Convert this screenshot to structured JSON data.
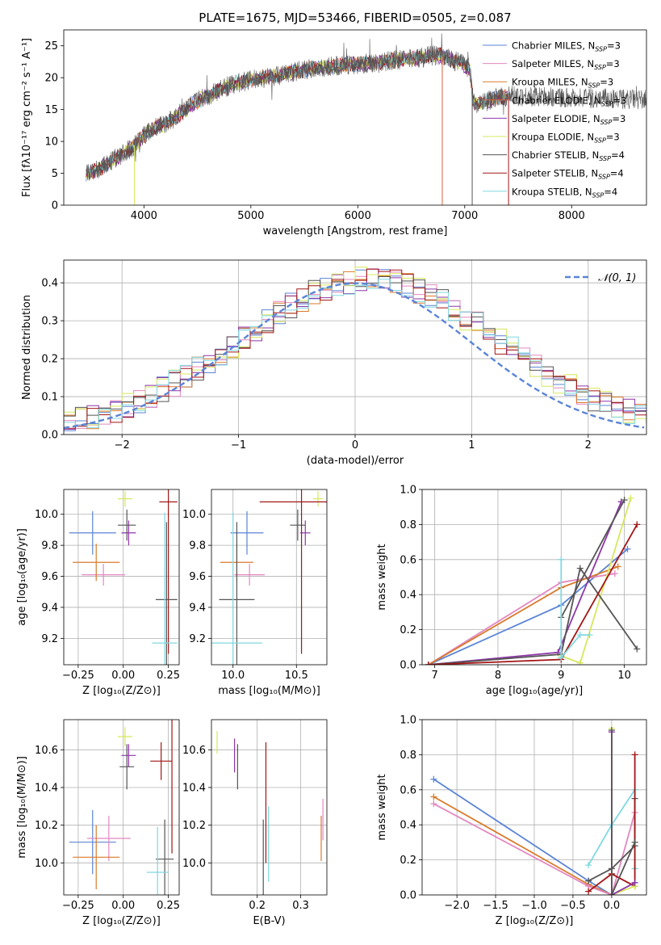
{
  "colors": {
    "chabrier_miles": "#5b84d6",
    "salpeter_miles": "#e387c0",
    "kroupa_miles": "#d97a2b",
    "chabrier_elodie": "#d9623c",
    "salpeter_elodie": "#8e37a8",
    "kroupa_elodie": "#d6e85c",
    "chabrier_stelib": "#555555",
    "salpeter_stelib": "#a31515",
    "kroupa_stelib": "#7fd8e0",
    "gauss": "#5b84d6"
  },
  "chart_data": [
    {
      "id": "spectrum",
      "type": "line",
      "title": "PLATE=1675, MJD=53466, FIBERID=0505, z=0.087",
      "xlabel": "wavelength [Angstrom, rest frame]",
      "ylabel": "Flux [fλ10⁻¹⁷ erg cm⁻² s⁻¹ A⁻¹]",
      "xlim": [
        3250,
        8700
      ],
      "ylim": [
        0,
        27.5
      ],
      "xticks": [
        "4000",
        "5000",
        "6000",
        "7000",
        "8000"
      ],
      "yticks": [
        "0",
        "5",
        "10",
        "15",
        "20",
        "25"
      ],
      "grid": false,
      "legend_position": "top-right",
      "legend": [
        {
          "key": "chabrier_miles",
          "label": "Chabrier MILES, N",
          "sub": "SSP",
          "suffix": "=3"
        },
        {
          "key": "salpeter_miles",
          "label": "Salpeter MILES, N",
          "sub": "SSP",
          "suffix": "=3"
        },
        {
          "key": "kroupa_miles",
          "label": "Kroupa MILES, N",
          "sub": "SSP",
          "suffix": "=3"
        },
        {
          "key": "chabrier_elodie",
          "label": "Chabrier ELODIE, N",
          "sub": "SSP",
          "suffix": "=3"
        },
        {
          "key": "salpeter_elodie",
          "label": "Salpeter ELODIE, N",
          "sub": "SSP",
          "suffix": "=3"
        },
        {
          "key": "kroupa_elodie",
          "label": "Kroupa ELODIE, N",
          "sub": "SSP",
          "suffix": "=3"
        },
        {
          "key": "chabrier_stelib",
          "label": "Chabrier STELIB, N",
          "sub": "SSP",
          "suffix": "=4"
        },
        {
          "key": "salpeter_stelib",
          "label": "Salpeter STELIB, N",
          "sub": "SSP",
          "suffix": "=4"
        },
        {
          "key": "kroupa_stelib",
          "label": "Kroupa STELIB, N",
          "sub": "SSP",
          "suffix": "=4"
        }
      ],
      "continuum": {
        "x": [
          3450,
          3600,
          3750,
          3900,
          4000,
          4100,
          4200,
          4300,
          4400,
          4500,
          4600,
          4700,
          4800,
          4900,
          5000,
          5100,
          5200,
          5300,
          5400,
          5500,
          5600,
          5700,
          5800,
          5900,
          6000,
          6100,
          6200,
          6300,
          6400,
          6500,
          6600,
          6700,
          6800,
          6900,
          7000,
          7050,
          7080,
          7150,
          7300,
          7400
        ],
        "y": [
          4.8,
          5.8,
          7.5,
          9.2,
          11.0,
          12.2,
          12.8,
          13.8,
          15.2,
          16.3,
          17.2,
          18.0,
          18.8,
          19.3,
          19.6,
          19.9,
          20.2,
          20.5,
          20.9,
          21.2,
          21.5,
          21.6,
          21.8,
          22.0,
          22.1,
          22.3,
          22.4,
          22.6,
          22.8,
          23.0,
          23.2,
          23.5,
          23.3,
          22.7,
          22.0,
          21.3,
          16.0,
          16.0,
          16.8,
          17.0
        ]
      },
      "cutoffs": [
        {
          "key": "kroupa_elodie",
          "x": 3910
        },
        {
          "key": "chabrier_elodie",
          "x": 6790
        },
        {
          "key": "chabrier_stelib",
          "x": 7070
        },
        {
          "key": "salpeter_stelib",
          "x": 7410
        }
      ]
    },
    {
      "id": "residuals",
      "type": "line",
      "xlabel": "(data-model)/error",
      "ylabel": "Normed distribution",
      "xlim": [
        -2.5,
        2.5
      ],
      "ylim": [
        0,
        0.46
      ],
      "xticks": [
        -2,
        -1,
        0,
        1,
        2
      ],
      "yticks": [
        0.0,
        0.1,
        0.2,
        0.3,
        0.4
      ],
      "grid": true,
      "legend_position": "top-right",
      "legend": [
        {
          "key": "gauss",
          "label": "𝒩(0, 1)"
        }
      ],
      "bin_width": 0.1
    },
    {
      "id": "age_vs_Z",
      "type": "scatter",
      "xlabel": "Z [log₁₀(Z/Z⊙)]",
      "ylabel": "age  [log₁₀(age/yr)]",
      "xlim": [
        -0.33,
        0.31
      ],
      "ylim": [
        9.03,
        10.16
      ],
      "xticks": [
        "−0.25",
        "0.00",
        "0.25"
      ],
      "xtick_values": [
        -0.25,
        0.0,
        0.25
      ],
      "yticks": [
        "9.2",
        "9.4",
        "9.6",
        "9.8",
        "10.0"
      ],
      "ytick_values": [
        9.2,
        9.4,
        9.6,
        9.8,
        10.0
      ],
      "grid": true,
      "points": [
        {
          "key": "chabrier_miles",
          "x": -0.17,
          "xerr": 0.13,
          "y": 9.88,
          "yerr": 0.14
        },
        {
          "key": "salpeter_miles",
          "x": -0.11,
          "xerr": 0.12,
          "y": 9.61,
          "yerr": 0.07
        },
        {
          "key": "kroupa_miles",
          "x": -0.15,
          "xerr": 0.13,
          "y": 9.69,
          "yerr": 0.12
        },
        {
          "key": "salpeter_elodie",
          "x": 0.03,
          "xerr": 0.04,
          "y": 9.88,
          "yerr": 0.08
        },
        {
          "key": "kroupa_elodie",
          "x": 0.01,
          "xerr": 0.04,
          "y": 10.1,
          "yerr": 0.05
        },
        {
          "key": "chabrier_stelib",
          "x": 0.02,
          "xerr": 0.05,
          "y": 9.93,
          "yerr": 0.1
        },
        {
          "key": "salpeter_stelib",
          "x": 0.25,
          "xerr": 0.05,
          "y": 10.08,
          "yerr": 0.98
        },
        {
          "key": "chabrier_stelib",
          "x": 0.24,
          "xerr": 0.06,
          "y": 9.45,
          "yerr": 0.5
        },
        {
          "key": "kroupa_stelib",
          "x": 0.23,
          "xerr": 0.07,
          "y": 9.17,
          "yerr": 0.84
        }
      ]
    },
    {
      "id": "age_vs_mass",
      "type": "scatter",
      "xlabel": "mass [log₁₀(M/M⊙)]",
      "xlim": [
        9.83,
        10.74
      ],
      "ylim": [
        9.03,
        10.16
      ],
      "xticks": [
        "10.0",
        "10.5"
      ],
      "xtick_values": [
        10.0,
        10.5
      ],
      "yticks": [
        "9.2",
        "9.4",
        "9.6",
        "9.8",
        "10.0"
      ],
      "ytick_values": [
        9.2,
        9.4,
        9.6,
        9.8,
        10.0
      ],
      "grid": true,
      "points": [
        {
          "key": "chabrier_miles",
          "x": 10.11,
          "xerr": 0.13,
          "y": 9.88,
          "yerr": 0.14
        },
        {
          "key": "salpeter_miles",
          "x": 10.13,
          "xerr": 0.12,
          "y": 9.61,
          "yerr": 0.07
        },
        {
          "key": "kroupa_miles",
          "x": 10.03,
          "xerr": 0.13,
          "y": 9.69,
          "yerr": 0.12
        },
        {
          "key": "salpeter_elodie",
          "x": 10.57,
          "xerr": 0.04,
          "y": 9.88,
          "yerr": 0.08
        },
        {
          "key": "kroupa_elodie",
          "x": 10.67,
          "xerr": 0.04,
          "y": 10.1,
          "yerr": 0.05
        },
        {
          "key": "chabrier_stelib",
          "x": 10.51,
          "xerr": 0.06,
          "y": 9.93,
          "yerr": 0.1
        },
        {
          "key": "salpeter_stelib",
          "x": 10.54,
          "xerr": 0.33,
          "y": 10.08,
          "yerr": 0.98
        },
        {
          "key": "chabrier_stelib",
          "x": 10.03,
          "xerr": 0.14,
          "y": 9.45,
          "yerr": 0.5
        },
        {
          "key": "kroupa_stelib",
          "x": 10.0,
          "xerr": 0.23,
          "y": 9.17,
          "yerr": 0.84
        }
      ]
    },
    {
      "id": "weight_vs_age",
      "type": "line",
      "xlabel": "age  [log₁₀(age/yr)]",
      "ylabel": "mass weight",
      "xlim": [
        6.8,
        10.35
      ],
      "ylim": [
        0,
        1.0
      ],
      "xticks": [
        "7",
        "8",
        "9",
        "10"
      ],
      "xtick_values": [
        7,
        8,
        9,
        10
      ],
      "yticks": [
        "0.0",
        "0.2",
        "0.4",
        "0.6",
        "0.8",
        "1.0"
      ],
      "ytick_values": [
        0,
        0.2,
        0.4,
        0.6,
        0.8,
        1.0
      ],
      "grid": true,
      "series": [
        {
          "key": "chabrier_miles",
          "x": [
            6.9,
            9.0,
            10.05
          ],
          "y": [
            0.0,
            0.34,
            0.66
          ]
        },
        {
          "key": "salpeter_miles",
          "x": [
            6.9,
            9.0,
            9.85
          ],
          "y": [
            0.0,
            0.47,
            0.52
          ]
        },
        {
          "key": "kroupa_miles",
          "x": [
            6.9,
            9.0,
            9.9
          ],
          "y": [
            0.0,
            0.44,
            0.56
          ]
        },
        {
          "key": "salpeter_elodie",
          "x": [
            6.9,
            8.95,
            9.95
          ],
          "y": [
            0.0,
            0.07,
            0.93
          ]
        },
        {
          "key": "kroupa_elodie",
          "x": [
            9.0,
            9.3,
            10.1
          ],
          "y": [
            0.05,
            0.01,
            0.95
          ]
        },
        {
          "key": "chabrier_stelib",
          "x": [
            6.9,
            9.0,
            9.3,
            10.2
          ],
          "y": [
            0.0,
            0.06,
            0.55,
            0.09
          ]
        },
        {
          "key": "chabrier_stelib",
          "x": [
            9.0,
            10.0
          ],
          "y": [
            0.27,
            0.94
          ]
        },
        {
          "key": "salpeter_stelib",
          "x": [
            6.9,
            9.0,
            10.2
          ],
          "y": [
            0.0,
            0.03,
            0.8
          ]
        },
        {
          "key": "kroupa_stelib",
          "x": [
            9.0,
            9.0,
            9.3,
            9.45
          ],
          "y": [
            0.6,
            0.04,
            0.17,
            0.17
          ]
        }
      ]
    },
    {
      "id": "mass_vs_Z",
      "type": "scatter",
      "xlabel": "Z [log₁₀(Z/Z⊙)]",
      "ylabel": "mass [log₁₀(M/M⊙)]",
      "xlim": [
        -0.33,
        0.31
      ],
      "ylim": [
        9.83,
        10.76
      ],
      "xticks": [
        "−0.25",
        "0.00",
        "0.25"
      ],
      "xtick_values": [
        -0.25,
        0.0,
        0.25
      ],
      "yticks": [
        "10.0",
        "10.2",
        "10.4",
        "10.6"
      ],
      "ytick_values": [
        10.0,
        10.2,
        10.4,
        10.6
      ],
      "grid": true,
      "points": [
        {
          "key": "chabrier_miles",
          "x": -0.17,
          "xerr": 0.13,
          "y": 10.11,
          "yerr": 0.17
        },
        {
          "key": "salpeter_miles",
          "x": -0.08,
          "xerr": 0.12,
          "y": 10.13,
          "yerr": 0.12
        },
        {
          "key": "kroupa_miles",
          "x": -0.15,
          "xerr": 0.13,
          "y": 10.03,
          "yerr": 0.17
        },
        {
          "key": "salpeter_elodie",
          "x": 0.03,
          "xerr": 0.04,
          "y": 10.57,
          "yerr": 0.06
        },
        {
          "key": "kroupa_elodie",
          "x": 0.01,
          "xerr": 0.04,
          "y": 10.67,
          "yerr": 0.05
        },
        {
          "key": "chabrier_stelib",
          "x": 0.02,
          "xerr": 0.04,
          "y": 10.51,
          "yerr": 0.12
        },
        {
          "key": "salpeter_stelib",
          "x": 0.21,
          "xerr": 0.06,
          "y": 10.54,
          "yerr": 0.1
        },
        {
          "key": "salpeter_stelib",
          "x": 0.27,
          "xerr": 0.0,
          "y": 10.45,
          "yerr": 0.4
        },
        {
          "key": "chabrier_stelib",
          "x": 0.23,
          "xerr": 0.05,
          "y": 10.02,
          "yerr": 0.21
        },
        {
          "key": "kroupa_stelib",
          "x": 0.19,
          "xerr": 0.06,
          "y": 9.95,
          "yerr": 0.24
        }
      ]
    },
    {
      "id": "mass_vs_ebv",
      "type": "scatter",
      "xlabel": "E(B-V)",
      "xlim": [
        0.095,
        0.36
      ],
      "ylim": [
        9.83,
        10.76
      ],
      "xticks": [
        "0.2",
        "0.3"
      ],
      "xtick_values": [
        0.2,
        0.3
      ],
      "yticks": [
        "10.0",
        "10.2",
        "10.4",
        "10.6"
      ],
      "ytick_values": [
        10.0,
        10.2,
        10.4,
        10.6
      ],
      "grid": true,
      "points": [
        {
          "key": "kroupa_elodie",
          "x": 0.108,
          "xerr": 0,
          "y": 10.64,
          "yerr": 0.06
        },
        {
          "key": "salpeter_elodie",
          "x": 0.148,
          "xerr": 0,
          "y": 10.57,
          "yerr": 0.09
        },
        {
          "key": "chabrier_stelib",
          "x": 0.155,
          "xerr": 0,
          "y": 10.51,
          "yerr": 0.12
        },
        {
          "key": "salpeter_stelib",
          "x": 0.22,
          "xerr": 0,
          "y": 10.32,
          "yerr": 0.32
        },
        {
          "key": "chabrier_stelib",
          "x": 0.214,
          "xerr": 0,
          "y": 10.0,
          "yerr": 0.23
        },
        {
          "key": "kroupa_stelib",
          "x": 0.226,
          "xerr": 0,
          "y": 10.1,
          "yerr": 0.2
        },
        {
          "key": "salpeter_miles",
          "x": 0.351,
          "xerr": 0,
          "y": 10.23,
          "yerr": 0.11
        },
        {
          "key": "kroupa_miles",
          "x": 0.347,
          "xerr": 0,
          "y": 10.13,
          "yerr": 0.12
        }
      ]
    },
    {
      "id": "weight_vs_Z",
      "type": "line",
      "xlabel": "Z [log₁₀(Z/Z⊙)]",
      "ylabel": "mass weight",
      "xlim": [
        -2.45,
        0.45
      ],
      "ylim": [
        0,
        1.0
      ],
      "xticks": [
        "−2.0",
        "−1.5",
        "−1.0",
        "−0.5",
        "0.0"
      ],
      "xtick_values": [
        -2.0,
        -1.5,
        -1.0,
        -0.5,
        0.0
      ],
      "yticks": [
        "0.0",
        "0.2",
        "0.4",
        "0.6",
        "0.8",
        "1.0"
      ],
      "ytick_values": [
        0,
        0.2,
        0.4,
        0.6,
        0.8,
        1.0
      ],
      "grid": true,
      "series": [
        {
          "key": "chabrier_miles",
          "x": [
            -2.3,
            -0.3,
            0.0
          ],
          "y": [
            0.66,
            0.08,
            0.0
          ]
        },
        {
          "key": "kroupa_miles",
          "x": [
            -2.3,
            -0.3,
            0.0
          ],
          "y": [
            0.56,
            0.06,
            0.0
          ]
        },
        {
          "key": "salpeter_miles",
          "x": [
            -2.3,
            -0.3,
            0.0,
            0.3
          ],
          "y": [
            0.52,
            0.05,
            0.0,
            0.47
          ]
        },
        {
          "key": "kroupa_stelib",
          "x": [
            -0.3,
            0.0,
            0.3,
            0.3
          ],
          "y": [
            0.17,
            0.4,
            0.6,
            0.15
          ]
        },
        {
          "key": "chabrier_stelib",
          "x": [
            -0.3,
            0.0,
            0.3,
            0.3
          ],
          "y": [
            0.08,
            0.15,
            0.28,
            0.55
          ]
        },
        {
          "key": "salpeter_stelib",
          "x": [
            -0.3,
            0.0,
            0.3,
            0.3
          ],
          "y": [
            0.02,
            0.12,
            0.05,
            0.8
          ]
        },
        {
          "key": "kroupa_elodie",
          "x": [
            0.0,
            0.0,
            0.3
          ],
          "y": [
            0.95,
            0.0,
            0.05
          ]
        },
        {
          "key": "salpeter_elodie",
          "x": [
            0.0,
            0.0,
            0.3
          ],
          "y": [
            0.93,
            0.0,
            0.07
          ]
        },
        {
          "key": "chabrier_stelib",
          "x": [
            0.0,
            0.0,
            0.3
          ],
          "y": [
            0.94,
            0.0,
            0.3
          ]
        }
      ]
    }
  ]
}
